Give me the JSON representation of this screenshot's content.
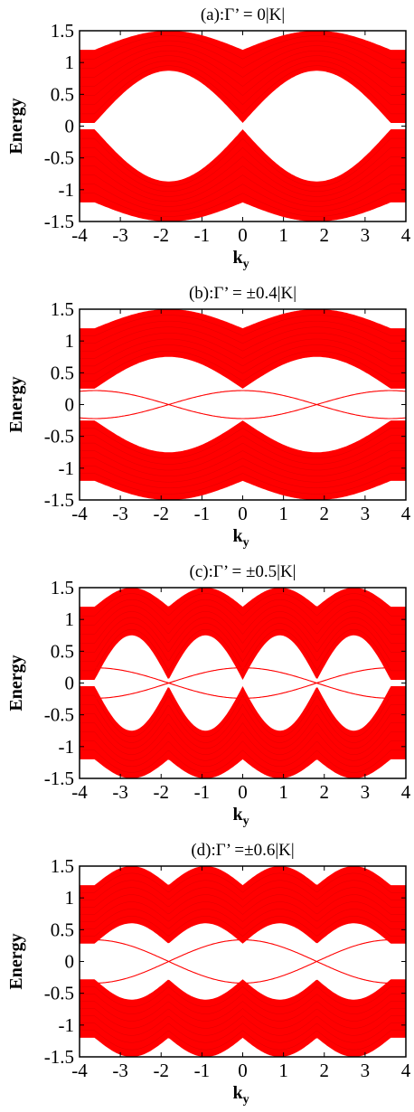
{
  "chart_data": [
    {
      "type": "line",
      "title": "(a):Γ’  = 0|K|",
      "xlabel": "k",
      "xlabel_sub": "y",
      "ylabel": "Energy",
      "xlim": [
        -4,
        4
      ],
      "ylim": [
        -1.5,
        1.5
      ],
      "x_ticks": [
        "-4",
        "-3",
        "-2",
        "-1",
        "0",
        "1",
        "2",
        "3",
        "4"
      ],
      "y_ticks": [
        "1.5",
        "1",
        "0.5",
        "0",
        "-0.5",
        "-1",
        "-1.5"
      ],
      "series_color": "#ff0000",
      "bulk_bands": {
        "outer_edge_max": 1.5,
        "outer_edge_min": 1.2,
        "inner_edge_max": 0.87,
        "inner_edge_min": 0.05,
        "node_ky": [
          -3.63,
          0,
          3.63
        ],
        "band_top_ky": [
          -1.82,
          1.82
        ]
      },
      "edge_states": []
    },
    {
      "type": "line",
      "title": "(b):Γ’  = ±0.4|K|",
      "xlabel": "k",
      "xlabel_sub": "y",
      "ylabel": "Energy",
      "xlim": [
        -4,
        4
      ],
      "ylim": [
        -1.5,
        1.5
      ],
      "x_ticks": [
        "-4",
        "-3",
        "-2",
        "-1",
        "0",
        "1",
        "2",
        "3",
        "4"
      ],
      "y_ticks": [
        "1.5",
        "1",
        "0.5",
        "0",
        "-0.5",
        "-1",
        "-1.5"
      ],
      "series_color": "#ff0000",
      "bulk_bands": {
        "outer_edge_max": 1.5,
        "outer_edge_min": 1.2,
        "inner_edge_max": 0.75,
        "inner_edge_min": 0.25,
        "node_ky": [
          -3.63,
          0,
          3.63
        ],
        "band_top_ky": [
          -1.82,
          1.82
        ]
      },
      "edge_states": [
        {
          "amplitude": 0.22
        }
      ]
    },
    {
      "type": "line",
      "title": "(c):Γ’  = ±0.5|K|",
      "xlabel": "k",
      "xlabel_sub": "y",
      "ylabel": "Energy",
      "xlim": [
        -4,
        4
      ],
      "ylim": [
        -1.5,
        1.5
      ],
      "x_ticks": [
        "-4",
        "-3",
        "-2",
        "-1",
        "0",
        "1",
        "2",
        "3",
        "4"
      ],
      "y_ticks": [
        "1.5",
        "1",
        "0.5",
        "0",
        "-0.5",
        "-1",
        "-1.5"
      ],
      "series_color": "#ff0000",
      "bulk_bands": {
        "outer_edge_max": 1.5,
        "outer_edge_min": 1.2,
        "inner_edge_max": 0.75,
        "inner_edge_min": 0.05,
        "node_ky": [
          -3.63,
          -1.82,
          0,
          1.82,
          3.63
        ],
        "band_top_ky": [
          -2.7,
          -0.9,
          0.9,
          2.7
        ]
      },
      "edge_states": [
        {
          "amplitude": 0.24
        }
      ]
    },
    {
      "type": "line",
      "title": "(d):Γ’  =±0.6|K|",
      "xlabel": "k",
      "xlabel_sub": "y",
      "ylabel": "Energy",
      "xlim": [
        -4,
        4
      ],
      "ylim": [
        -1.5,
        1.5
      ],
      "x_ticks": [
        "-4",
        "-3",
        "-2",
        "-1",
        "0",
        "1",
        "2",
        "3",
        "4"
      ],
      "y_ticks": [
        "1.5",
        "1",
        "0.5",
        "0",
        "-0.5",
        "-1",
        "-1.5"
      ],
      "series_color": "#ff0000",
      "bulk_bands": {
        "outer_edge_max": 1.5,
        "outer_edge_min": 1.2,
        "inner_edge_max": 0.6,
        "inner_edge_min": 0.28,
        "node_ky": [
          -3.63,
          -1.82,
          0,
          1.82,
          3.63
        ],
        "band_top_ky": [
          -2.7,
          -0.9,
          0.9,
          2.7
        ]
      },
      "edge_states": [
        {
          "amplitude": 0.34
        }
      ]
    }
  ]
}
